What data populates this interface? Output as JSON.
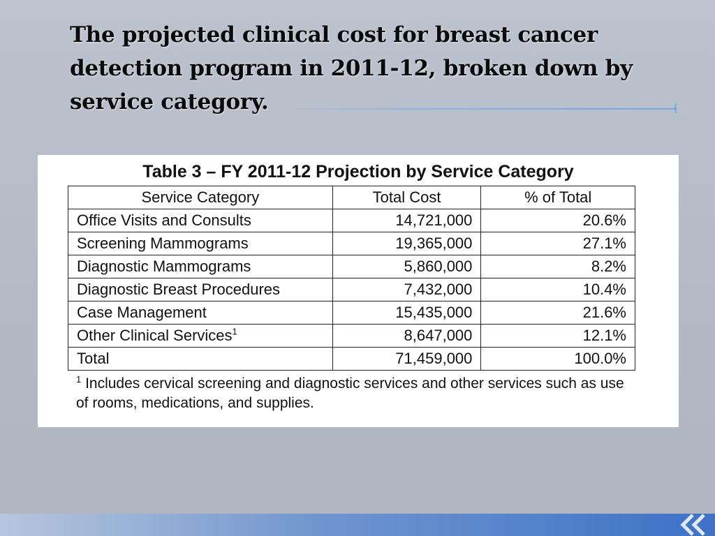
{
  "slide": {
    "title": "The projected clinical cost for breast cancer detection program in 2011-12, broken down by service category."
  },
  "table": {
    "caption": "Table 3 – FY 2011-12 Projection by Service Category",
    "headers": [
      "Service Category",
      "Total Cost",
      "% of Total"
    ],
    "rows": [
      {
        "category": "Office Visits and Consults",
        "cost": "14,721,000",
        "pct": "20.6%"
      },
      {
        "category": "Screening Mammograms",
        "cost": "19,365,000",
        "pct": "27.1%"
      },
      {
        "category": "Diagnostic Mammograms",
        "cost": "5,860,000",
        "pct": "8.2%"
      },
      {
        "category": "Diagnostic Breast Procedures",
        "cost": "7,432,000",
        "pct": "10.4%"
      },
      {
        "category": "Case Management",
        "cost": "15,435,000",
        "pct": "21.6%"
      },
      {
        "category": "Other Clinical Services",
        "footnote_mark": "1",
        "cost": "8,647,000",
        "pct": "12.1%"
      },
      {
        "category": "Total",
        "cost": "71,459,000",
        "pct": "100.0%"
      }
    ],
    "footnote": {
      "mark": "1",
      "text": "Includes cervical screening and diagnostic services and other services such as use of rooms, medications, and supplies."
    }
  },
  "theme": {
    "background": "#b8bfcb",
    "accent": "#3d72c6"
  },
  "icons": [
    "double-chevron-left-icon"
  ]
}
